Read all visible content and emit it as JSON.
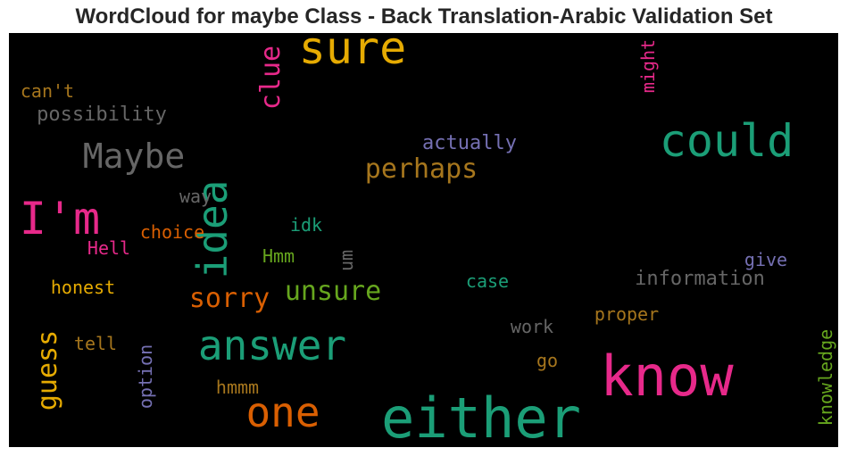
{
  "chart_data": {
    "type": "wordcloud",
    "title": "WordCloud for maybe Class - Back Translation-Arabic Validation Set",
    "background": "#000000",
    "words": [
      {
        "text": "either",
        "color": "#1b9e77",
        "size": 62,
        "vertical": false
      },
      {
        "text": "know",
        "color": "#e7298a",
        "size": 62,
        "vertical": false
      },
      {
        "text": "sure",
        "color": "#e6ab02",
        "size": 50,
        "vertical": false
      },
      {
        "text": "could",
        "color": "#1b9e77",
        "size": 50,
        "vertical": false
      },
      {
        "text": "I'm",
        "color": "#e7298a",
        "size": 50,
        "vertical": false
      },
      {
        "text": "idea",
        "color": "#1b9e77",
        "size": 46,
        "vertical": true
      },
      {
        "text": "answer",
        "color": "#1b9e77",
        "size": 46,
        "vertical": false
      },
      {
        "text": "one",
        "color": "#d95f02",
        "size": 46,
        "vertical": false
      },
      {
        "text": "Maybe",
        "color": "#666666",
        "size": 38,
        "vertical": false
      },
      {
        "text": "perhaps",
        "color": "#a6761d",
        "size": 30,
        "vertical": false
      },
      {
        "text": "clue",
        "color": "#e7298a",
        "size": 30,
        "vertical": true
      },
      {
        "text": "sorry",
        "color": "#d95f02",
        "size": 30,
        "vertical": false
      },
      {
        "text": "unsure",
        "color": "#66a61e",
        "size": 30,
        "vertical": false
      },
      {
        "text": "guess",
        "color": "#e6ab02",
        "size": 30,
        "vertical": true
      },
      {
        "text": "possibility",
        "color": "#666666",
        "size": 22,
        "vertical": false
      },
      {
        "text": "can't",
        "color": "#a6761d",
        "size": 20,
        "vertical": false
      },
      {
        "text": "might",
        "color": "#e7298a",
        "size": 20,
        "vertical": true
      },
      {
        "text": "actually",
        "color": "#7570b3",
        "size": 22,
        "vertical": false
      },
      {
        "text": "way",
        "color": "#666666",
        "size": 20,
        "vertical": false
      },
      {
        "text": "choice",
        "color": "#d95f02",
        "size": 20,
        "vertical": false
      },
      {
        "text": "idk",
        "color": "#1b9e77",
        "size": 20,
        "vertical": false
      },
      {
        "text": "Hell",
        "color": "#e7298a",
        "size": 20,
        "vertical": false
      },
      {
        "text": "Hmm",
        "color": "#66a61e",
        "size": 20,
        "vertical": false
      },
      {
        "text": "um",
        "color": "#666666",
        "size": 20,
        "vertical": true
      },
      {
        "text": "give",
        "color": "#7570b3",
        "size": 20,
        "vertical": false
      },
      {
        "text": "information",
        "color": "#666666",
        "size": 22,
        "vertical": false
      },
      {
        "text": "honest",
        "color": "#e6ab02",
        "size": 20,
        "vertical": false
      },
      {
        "text": "case",
        "color": "#1b9e77",
        "size": 20,
        "vertical": false
      },
      {
        "text": "proper",
        "color": "#a6761d",
        "size": 20,
        "vertical": false
      },
      {
        "text": "work",
        "color": "#666666",
        "size": 20,
        "vertical": false
      },
      {
        "text": "tell",
        "color": "#a6761d",
        "size": 20,
        "vertical": false
      },
      {
        "text": "option",
        "color": "#7570b3",
        "size": 20,
        "vertical": true
      },
      {
        "text": "knowledge",
        "color": "#66a61e",
        "size": 20,
        "vertical": true
      },
      {
        "text": "go",
        "color": "#a6761d",
        "size": 20,
        "vertical": false
      },
      {
        "text": "hmmm",
        "color": "#a6761d",
        "size": 20,
        "vertical": false
      }
    ]
  }
}
